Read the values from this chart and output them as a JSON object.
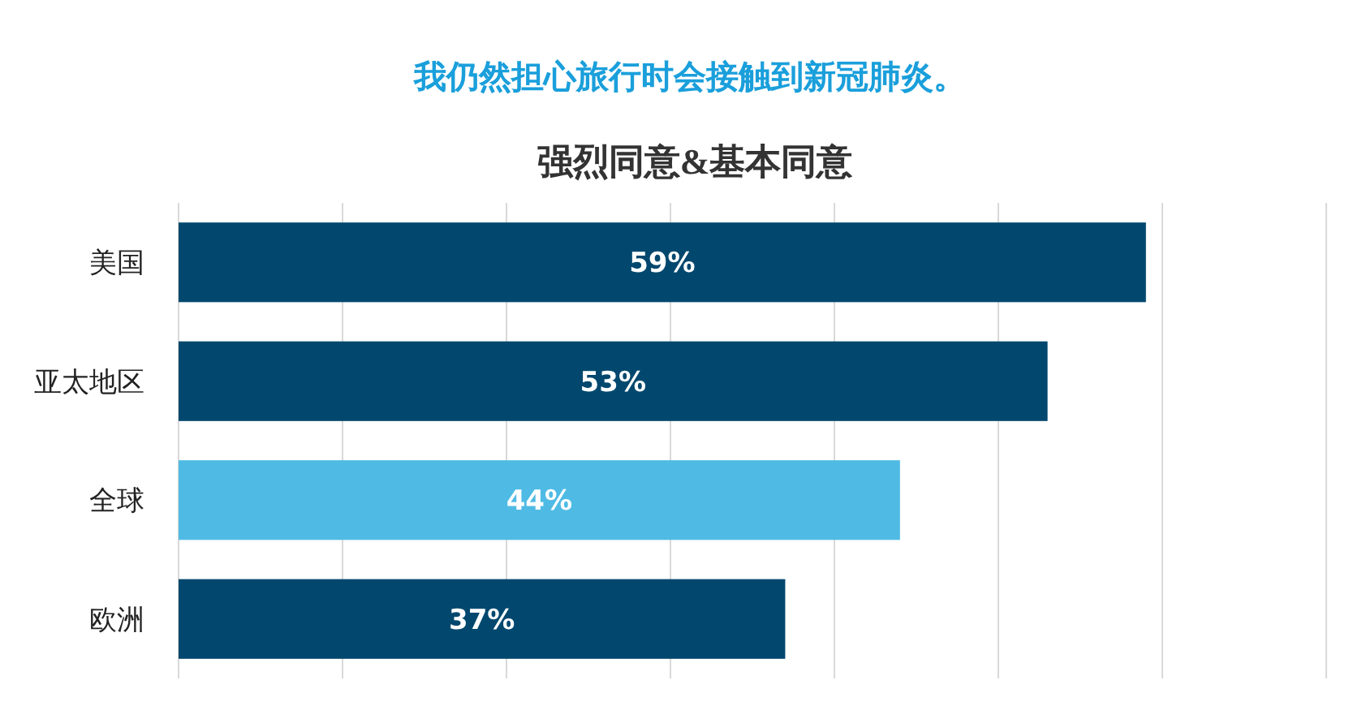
{
  "chart_data": {
    "type": "bar",
    "orientation": "horizontal",
    "title": "我仍然担心旅行时会接触到新冠肺炎。",
    "subtitle": "强烈同意&基本同意",
    "categories": [
      "美国",
      "亚太地区",
      "全球",
      "欧洲"
    ],
    "values": [
      59,
      53,
      44,
      37
    ],
    "colors": [
      "#02486e",
      "#02486e",
      "#4fbbe4",
      "#02486e"
    ],
    "value_labels": [
      "59%",
      "53%",
      "44%",
      "37%"
    ],
    "xlim": [
      0,
      70
    ],
    "xticks": [
      0,
      10,
      20,
      30,
      40,
      50,
      60,
      70
    ],
    "grid": "x",
    "tick_labels": "y"
  }
}
